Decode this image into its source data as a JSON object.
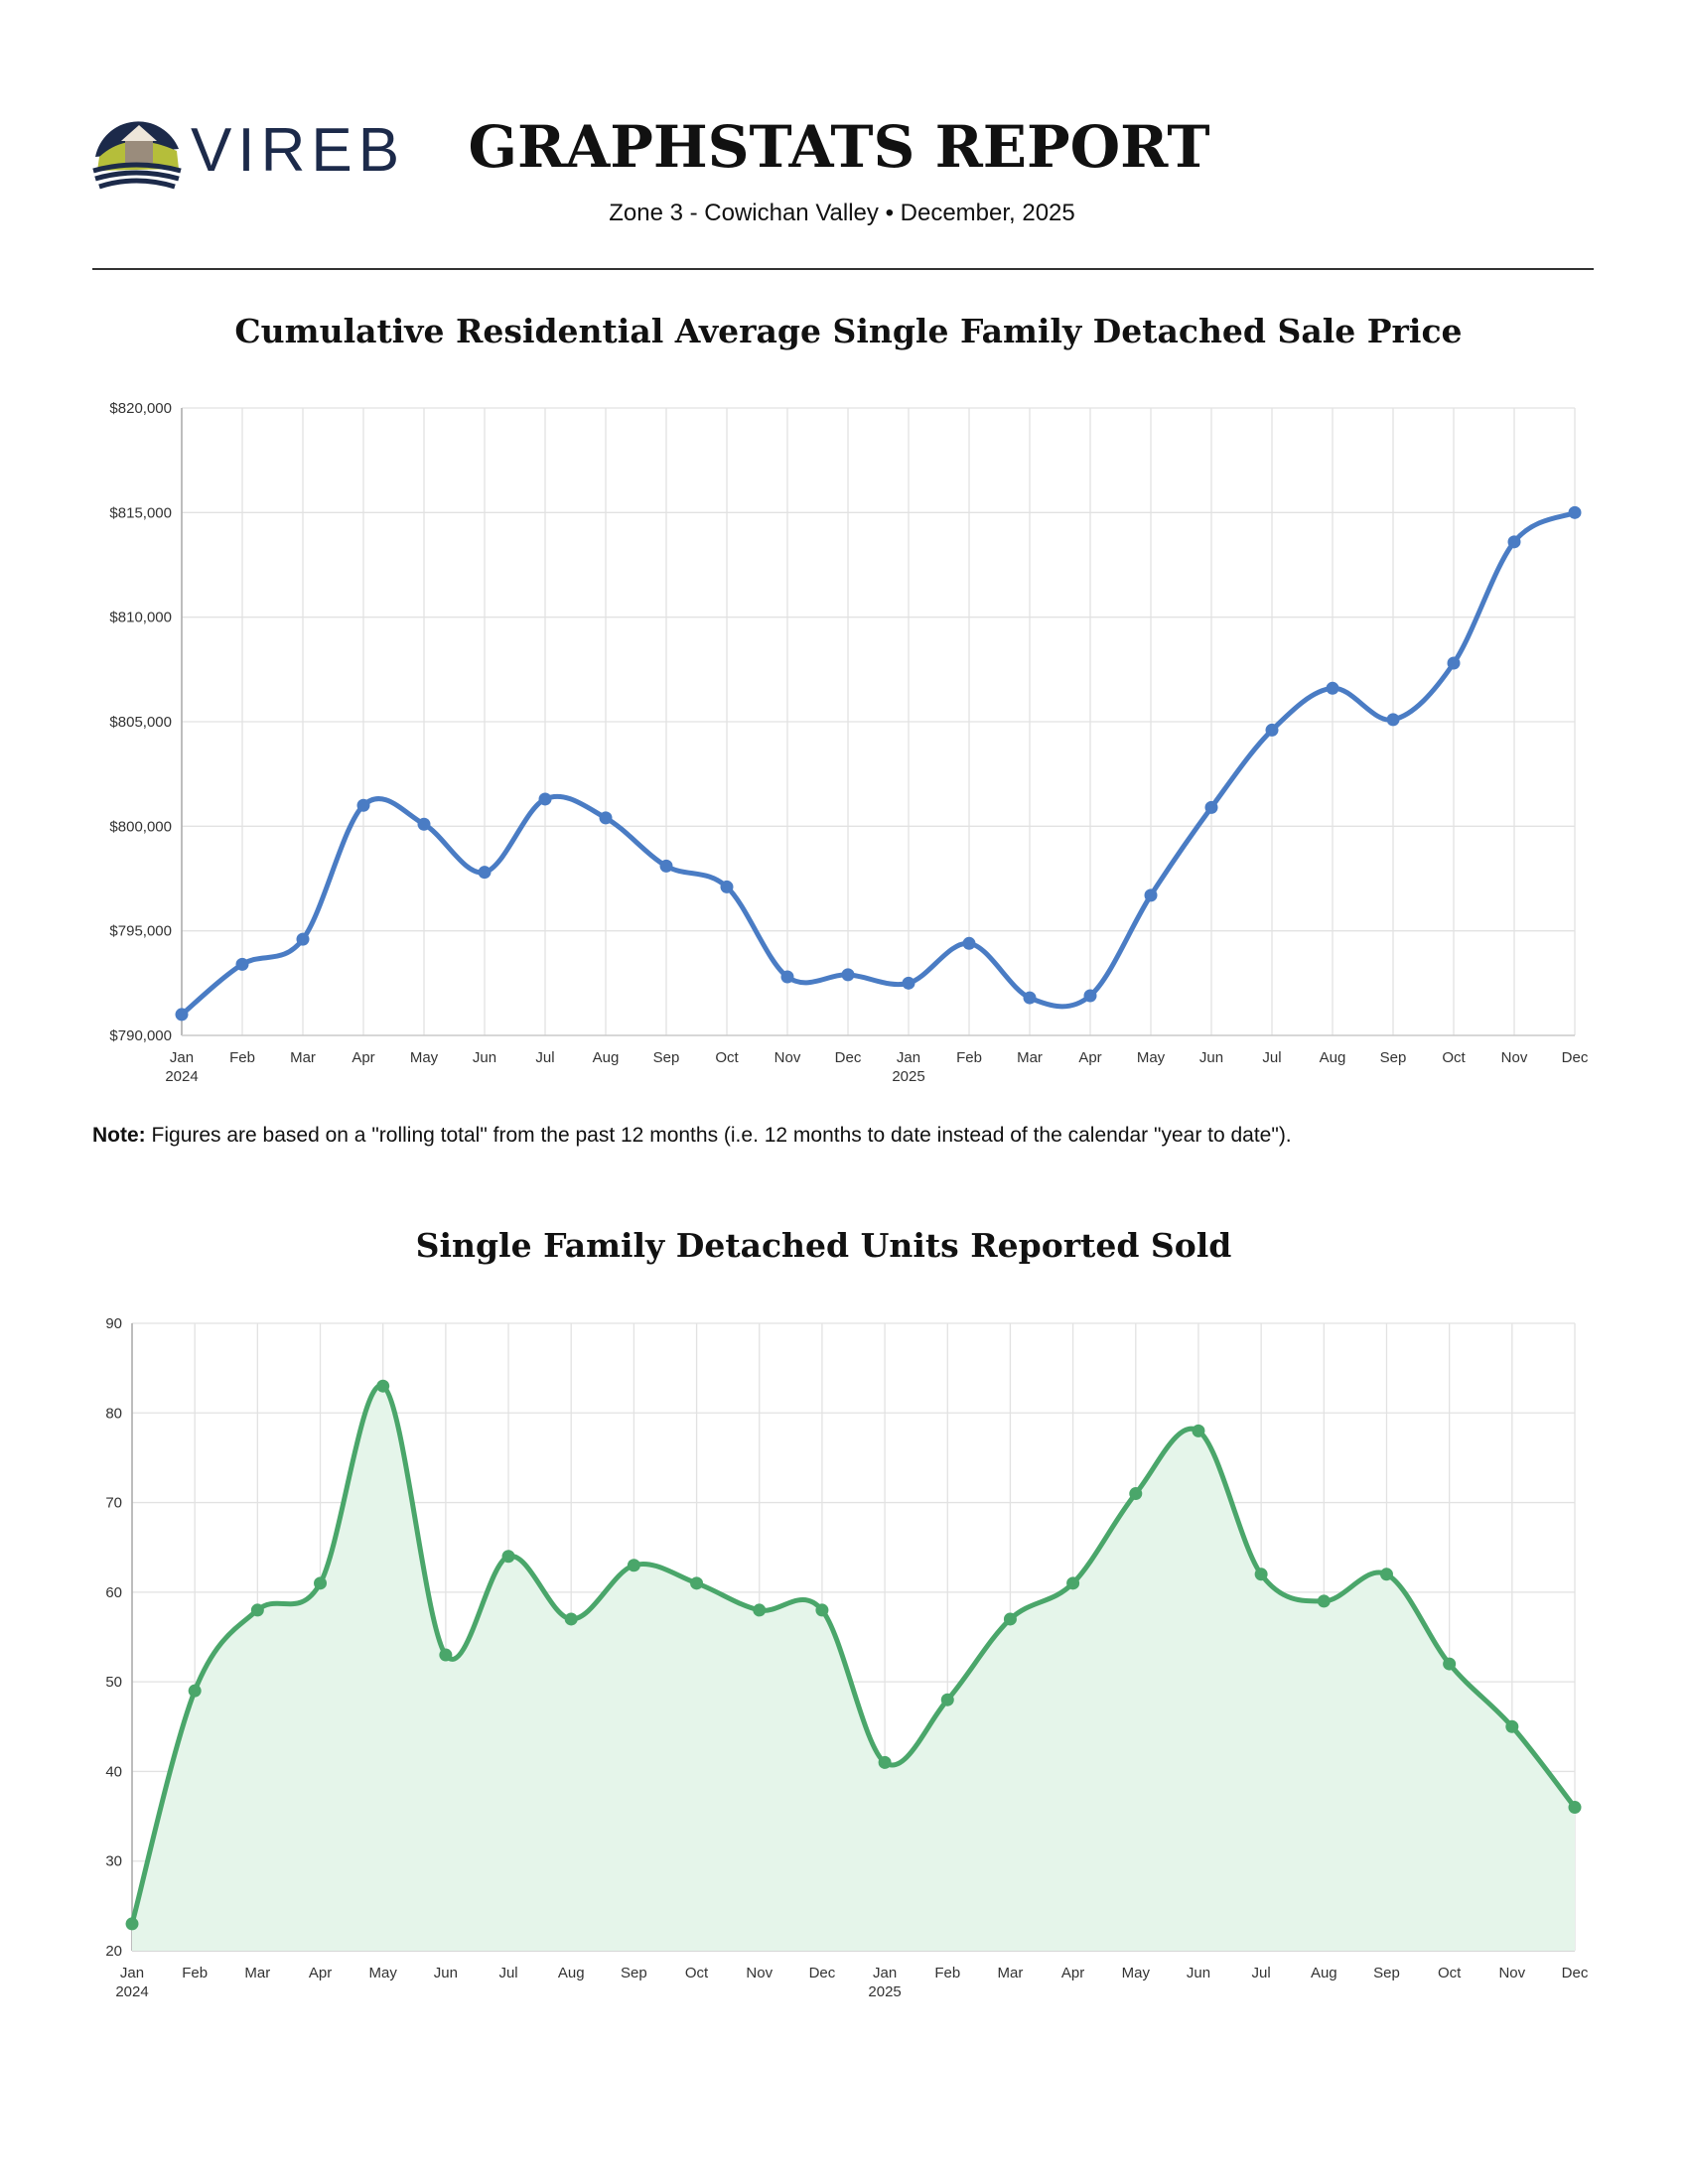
{
  "header": {
    "logo_text": "VIREB",
    "title": "GRAPHSTATS REPORT",
    "subtitle": "Zone 3 - Cowichan Valley • December, 2025"
  },
  "note": {
    "label": "Note:",
    "text": "Figures are based on a \"rolling total\" from the past 12 months (i.e. 12 months to date instead of the calendar \"year to date\")."
  },
  "chart_data": [
    {
      "type": "line",
      "title": "Cumulative Residential Average Single Family Detached Sale Price",
      "categories": [
        "Jan",
        "Feb",
        "Mar",
        "Apr",
        "May",
        "Jun",
        "Jul",
        "Aug",
        "Sep",
        "Oct",
        "Nov",
        "Dec",
        "Jan",
        "Feb",
        "Mar",
        "Apr",
        "May",
        "Jun",
        "Jul",
        "Aug",
        "Sep",
        "Oct",
        "Nov",
        "Dec"
      ],
      "x_years": [
        "2024",
        null,
        null,
        null,
        null,
        null,
        null,
        null,
        null,
        null,
        null,
        null,
        "2025",
        null,
        null,
        null,
        null,
        null,
        null,
        null,
        null,
        null,
        null,
        null
      ],
      "values": [
        791000,
        793400,
        794600,
        801000,
        800100,
        797800,
        801300,
        800400,
        798100,
        797100,
        792800,
        792900,
        792500,
        794400,
        791800,
        791900,
        796700,
        800900,
        804600,
        806600,
        805100,
        807800,
        813600,
        815000
      ],
      "color": "#4a7cc4",
      "ylim": [
        790000,
        820000
      ],
      "yticks": [
        {
          "value": 790000,
          "label": "$790,000"
        },
        {
          "value": 795000,
          "label": "$795,000"
        },
        {
          "value": 800000,
          "label": "$800,000"
        },
        {
          "value": 805000,
          "label": "$805,000"
        },
        {
          "value": 810000,
          "label": "$810,000"
        },
        {
          "value": 815000,
          "label": "$815,000"
        },
        {
          "value": 820000,
          "label": "$820,000"
        }
      ],
      "grid": true
    },
    {
      "type": "area",
      "title": "Single Family Detached Units Reported Sold",
      "categories": [
        "Jan",
        "Feb",
        "Mar",
        "Apr",
        "May",
        "Jun",
        "Jul",
        "Aug",
        "Sep",
        "Oct",
        "Nov",
        "Dec",
        "Jan",
        "Feb",
        "Mar",
        "Apr",
        "May",
        "Jun",
        "Jul",
        "Aug",
        "Sep",
        "Oct",
        "Nov",
        "Dec"
      ],
      "x_years": [
        "2024",
        null,
        null,
        null,
        null,
        null,
        null,
        null,
        null,
        null,
        null,
        null,
        "2025",
        null,
        null,
        null,
        null,
        null,
        null,
        null,
        null,
        null,
        null,
        null
      ],
      "values": [
        23,
        49,
        58,
        61,
        83,
        53,
        64,
        57,
        63,
        61,
        58,
        58,
        41,
        48,
        57,
        61,
        71,
        78,
        62,
        59,
        62,
        52,
        45,
        36
      ],
      "color": "#4aa66a",
      "fill": "#e5f5ea",
      "ylim": [
        20,
        90
      ],
      "yticks": [
        20,
        30,
        40,
        50,
        60,
        70,
        80,
        90
      ],
      "grid": true
    }
  ]
}
